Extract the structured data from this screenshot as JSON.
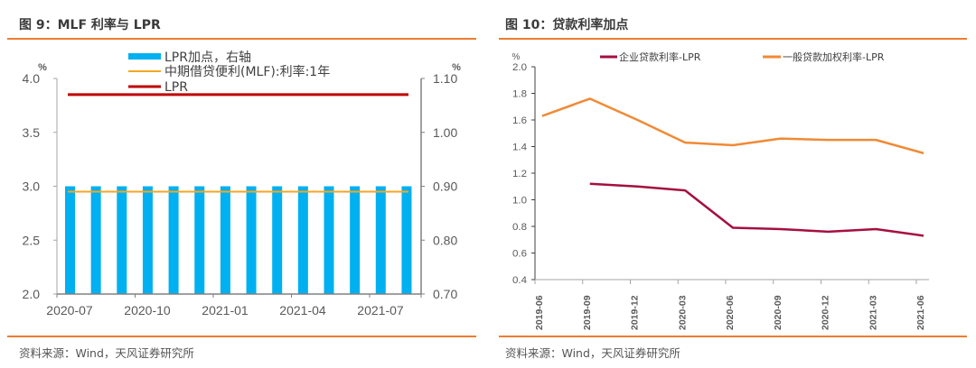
{
  "left_panel": {
    "title": "图 9：MLF 利率与 LPR",
    "source": "资料来源：Wind，天风证券研究所"
  },
  "right_panel": {
    "title": "图 10：贷款利率加点",
    "source": "资料来源：Wind，天风证券研究所"
  },
  "colors": {
    "accent_rule": "#ED7D31",
    "bar_blue": "#00B0F0",
    "mlf_orange": "#F5A623",
    "lpr_red": "#C00000",
    "corp_crimson": "#A50F3F",
    "general_orange": "#F08A35"
  },
  "chart_data": [
    {
      "type": "bar",
      "title": "MLF 利率与 LPR",
      "categories": [
        "2020-07",
        "2020-08",
        "2020-09",
        "2020-10",
        "2020-11",
        "2020-12",
        "2021-01",
        "2021-02",
        "2021-03",
        "2021-04",
        "2021-05",
        "2021-06",
        "2021-07",
        "2021-08"
      ],
      "x_tick_labels": [
        "2020-07",
        "2020-10",
        "2021-01",
        "2021-04",
        "2021-07"
      ],
      "left_axis": {
        "unit": "%",
        "ylim": [
          2.0,
          4.0
        ],
        "ticks": [
          "2.0",
          "2.5",
          "3.0",
          "3.5",
          "4.0"
        ]
      },
      "right_axis": {
        "unit": "%",
        "ylim": [
          0.7,
          1.1
        ],
        "ticks": [
          "0.70",
          "0.80",
          "0.90",
          "1.00",
          "1.10"
        ]
      },
      "series": [
        {
          "name": "LPR加点，右轴",
          "kind": "bar",
          "axis": "right",
          "values": [
            0.9,
            0.9,
            0.9,
            0.9,
            0.9,
            0.9,
            0.9,
            0.9,
            0.9,
            0.9,
            0.9,
            0.9,
            0.9,
            0.9
          ]
        },
        {
          "name": "中期借贷便利(MLF):利率:1年",
          "kind": "line",
          "axis": "left",
          "values": [
            2.95,
            2.95,
            2.95,
            2.95,
            2.95,
            2.95,
            2.95,
            2.95,
            2.95,
            2.95,
            2.95,
            2.95,
            2.95,
            2.95
          ]
        },
        {
          "name": "LPR",
          "kind": "line",
          "axis": "left",
          "values": [
            3.85,
            3.85,
            3.85,
            3.85,
            3.85,
            3.85,
            3.85,
            3.85,
            3.85,
            3.85,
            3.85,
            3.85,
            3.85,
            3.85
          ]
        }
      ],
      "legend_placement": "top-center",
      "grid": false
    },
    {
      "type": "line",
      "title": "贷款利率加点",
      "categories": [
        "2019-06",
        "2019-09",
        "2019-12",
        "2020-03",
        "2020-06",
        "2020-09",
        "2020-12",
        "2021-03",
        "2021-06"
      ],
      "ylabel": "%",
      "ylim": [
        0.4,
        2.0
      ],
      "y_ticks": [
        "0.4",
        "0.6",
        "0.8",
        "1.0",
        "1.2",
        "1.4",
        "1.6",
        "1.8",
        "2.0"
      ],
      "series": [
        {
          "name": "企业贷款利率-LPR",
          "values": [
            null,
            1.12,
            1.1,
            1.07,
            0.79,
            0.78,
            0.76,
            0.78,
            0.73
          ]
        },
        {
          "name": "一般贷款加权利率-LPR",
          "values": [
            1.63,
            1.76,
            1.6,
            1.43,
            1.41,
            1.46,
            1.45,
            1.45,
            1.35
          ]
        }
      ],
      "legend_placement": "top",
      "grid": false
    }
  ]
}
